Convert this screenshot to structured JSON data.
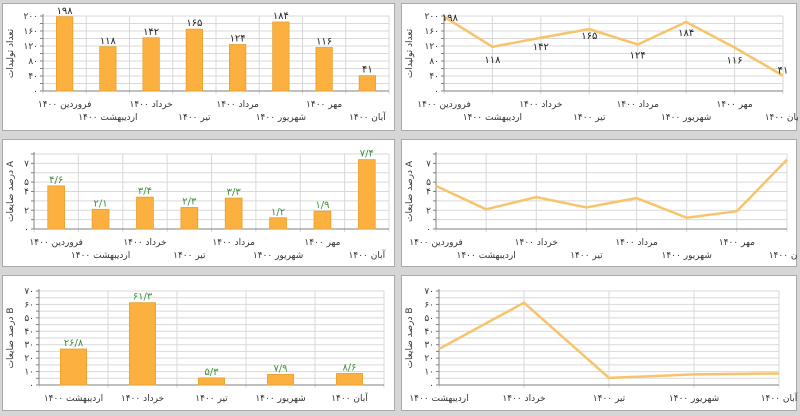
{
  "colors": {
    "series": "#fbb040",
    "series_stroke": "#e8a030",
    "line": "#f7c46b",
    "grid": "#d9d9d9",
    "axis": "#808080",
    "label_green": "#3f8f3f",
    "label_black": "#222222"
  },
  "chart_data": [
    {
      "type": "bar",
      "ylabel": "تعداد تولیدات",
      "ylim": [
        0,
        200
      ],
      "yticks": [
        {
          "v": 0,
          "t": "۰"
        },
        {
          "v": 40,
          "t": "۴۰"
        },
        {
          "v": 80,
          "t": "۸۰"
        },
        {
          "v": 120,
          "t": "۱۲۰"
        },
        {
          "v": 160,
          "t": "۱۶۰"
        },
        {
          "v": 200,
          "t": "۲۰۰"
        }
      ],
      "categories": [
        "فروردین ۱۴۰۰",
        "اردیبهشت ۱۴۰۰",
        "خرداد ۱۴۰۰",
        "تیر ۱۴۰۰",
        "مرداد ۱۴۰۰",
        "شهریور ۱۴۰۰",
        "مهر ۱۴۰۰",
        "آبان ۱۴۰۰"
      ],
      "values": [
        198,
        118,
        142,
        165,
        124,
        184,
        116,
        41
      ],
      "data_labels": [
        "۱۹۸",
        "۱۱۸",
        "۱۴۲",
        "۱۶۵",
        "۱۲۴",
        "۱۸۴",
        "۱۱۶",
        "۴۱"
      ],
      "grid": true
    },
    {
      "type": "line",
      "ylabel": "تعداد تولیدات",
      "ylim": [
        0,
        200
      ],
      "yticks": [
        {
          "v": 0,
          "t": "۰"
        },
        {
          "v": 40,
          "t": "۴۰"
        },
        {
          "v": 80,
          "t": "۸۰"
        },
        {
          "v": 120,
          "t": "۱۲۰"
        },
        {
          "v": 160,
          "t": "۱۶۰"
        },
        {
          "v": 200,
          "t": "۲۰۰"
        }
      ],
      "categories": [
        "فروردین ۱۴۰۰",
        "اردیبهشت ۱۴۰۰",
        "خرداد ۱۴۰۰",
        "تیر ۱۴۰۰",
        "مرداد ۱۴۰۰",
        "شهریور ۱۴۰۰",
        "مهر ۱۴۰۰",
        "آبان ۱۴۰۰"
      ],
      "values": [
        198,
        118,
        142,
        165,
        124,
        184,
        116,
        41
      ],
      "data_labels": [
        "۱۹۸",
        "۱۱۸",
        "۱۴۲",
        "۱۶۵",
        "۱۲۴",
        "۱۸۴",
        "۱۱۶",
        "۴۱"
      ],
      "grid": true
    },
    {
      "type": "bar",
      "ylabel": "درصد ضایعات A",
      "ylim": [
        0,
        8
      ],
      "yticks": [
        {
          "v": 0,
          "t": "۰"
        },
        {
          "v": 2,
          "t": "۲"
        },
        {
          "v": 4,
          "t": "۴"
        },
        {
          "v": 5,
          "t": "۵"
        },
        {
          "v": 7,
          "t": "۷"
        }
      ],
      "categories": [
        "فروردین ۱۴۰۰",
        "اردیبهشت ۱۴۰۰",
        "خرداد ۱۴۰۰",
        "تیر ۱۴۰۰",
        "مرداد ۱۴۰۰",
        "شهریور ۱۴۰۰",
        "مهر ۱۴۰۰",
        "آبان ۱۴۰۰"
      ],
      "values": [
        4.6,
        2.1,
        3.4,
        2.3,
        3.3,
        1.2,
        1.9,
        7.4
      ],
      "data_labels": [
        "۴/۶",
        "۲/۱",
        "۳/۴",
        "۲/۳",
        "۳/۳",
        "۱/۲",
        "۱/۹",
        "۷/۴"
      ],
      "grid": true
    },
    {
      "type": "line",
      "ylabel": "درصد ضایعات A",
      "ylim": [
        0,
        8
      ],
      "yticks": [
        {
          "v": 0,
          "t": "۰"
        },
        {
          "v": 2,
          "t": "۲"
        },
        {
          "v": 4,
          "t": "۴"
        },
        {
          "v": 5,
          "t": "۵"
        },
        {
          "v": 7,
          "t": "۷"
        }
      ],
      "categories": [
        "فروردین ۱۴۰۰",
        "اردیبهشت ۱۴۰۰",
        "خرداد ۱۴۰۰",
        "تیر ۱۴۰۰",
        "مرداد ۱۴۰۰",
        "شهریور ۱۴۰۰",
        "مهر ۱۴۰۰",
        "آبان ۱۴۰۰"
      ],
      "values": [
        4.6,
        2.1,
        3.4,
        2.3,
        3.3,
        1.2,
        1.9,
        7.4
      ],
      "grid": true
    },
    {
      "type": "bar",
      "ylabel": "درصد ضایعات B",
      "ylim": [
        0,
        70
      ],
      "yticks": [
        {
          "v": 0,
          "t": "۰"
        },
        {
          "v": 10,
          "t": "۱۰"
        },
        {
          "v": 20,
          "t": "۲۰"
        },
        {
          "v": 30,
          "t": "۳۰"
        },
        {
          "v": 40,
          "t": "۴۰"
        },
        {
          "v": 50,
          "t": "۵۰"
        },
        {
          "v": 60,
          "t": "۶۰"
        },
        {
          "v": 70,
          "t": "۷۰"
        }
      ],
      "categories": [
        "اردیبهشت ۱۴۰۰",
        "خرداد ۱۴۰۰",
        "تیر ۱۴۰۰",
        "شهریور ۱۴۰۰",
        "آبان ۱۴۰۰"
      ],
      "values": [
        26.8,
        61.3,
        5.3,
        7.9,
        8.6
      ],
      "data_labels": [
        "۲۶/۸",
        "۶۱/۳",
        "۵/۳",
        "۷/۹",
        "۸/۶"
      ],
      "grid": true
    },
    {
      "type": "line",
      "ylabel": "درصد ضایعات B",
      "ylim": [
        0,
        70
      ],
      "yticks": [
        {
          "v": 0,
          "t": "۰"
        },
        {
          "v": 10,
          "t": "۱۰"
        },
        {
          "v": 20,
          "t": "۲۰"
        },
        {
          "v": 30,
          "t": "۳۰"
        },
        {
          "v": 40,
          "t": "۴۰"
        },
        {
          "v": 50,
          "t": "۵۰"
        },
        {
          "v": 60,
          "t": "۶۰"
        },
        {
          "v": 70,
          "t": "۷۰"
        }
      ],
      "categories": [
        "اردیبهشت ۱۴۰۰",
        "خرداد ۱۴۰۰",
        "تیر ۱۴۰۰",
        "شهریور ۱۴۰۰",
        "آبان ۱۴۰۰"
      ],
      "values": [
        26.8,
        61.3,
        5.3,
        7.9,
        8.6
      ],
      "grid": true
    }
  ]
}
